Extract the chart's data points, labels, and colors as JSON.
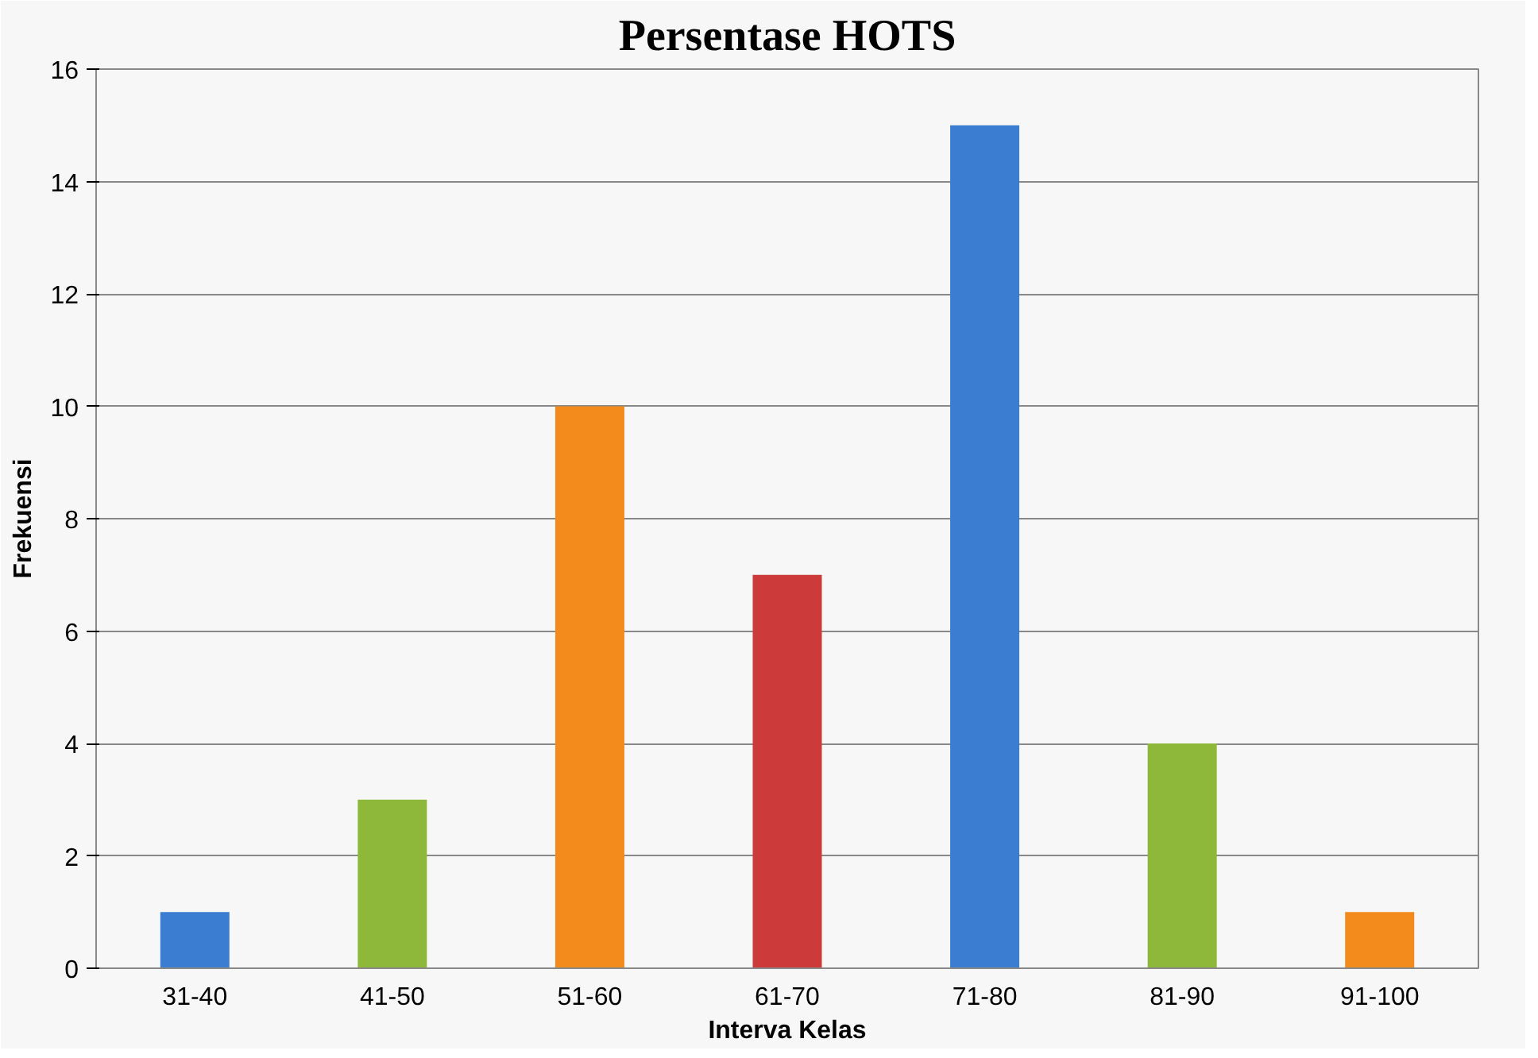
{
  "chart_data": {
    "type": "bar",
    "title": "Persentase HOTS",
    "xlabel": "Interva Kelas",
    "ylabel": "Frekuensi",
    "categories": [
      "31-40",
      "41-50",
      "51-60",
      "61-70",
      "71-80",
      "81-90",
      "91-100"
    ],
    "values": [
      1,
      3,
      10,
      7,
      15,
      4,
      1
    ],
    "colors": [
      "#3b7dd0",
      "#8db83a",
      "#f28a1c",
      "#cc3a3a",
      "#3b7dd0",
      "#8db83a",
      "#f28a1c"
    ],
    "ylim": [
      0,
      16
    ],
    "yticks": [
      0,
      2,
      4,
      6,
      8,
      10,
      12,
      14,
      16
    ],
    "grid": "y"
  }
}
